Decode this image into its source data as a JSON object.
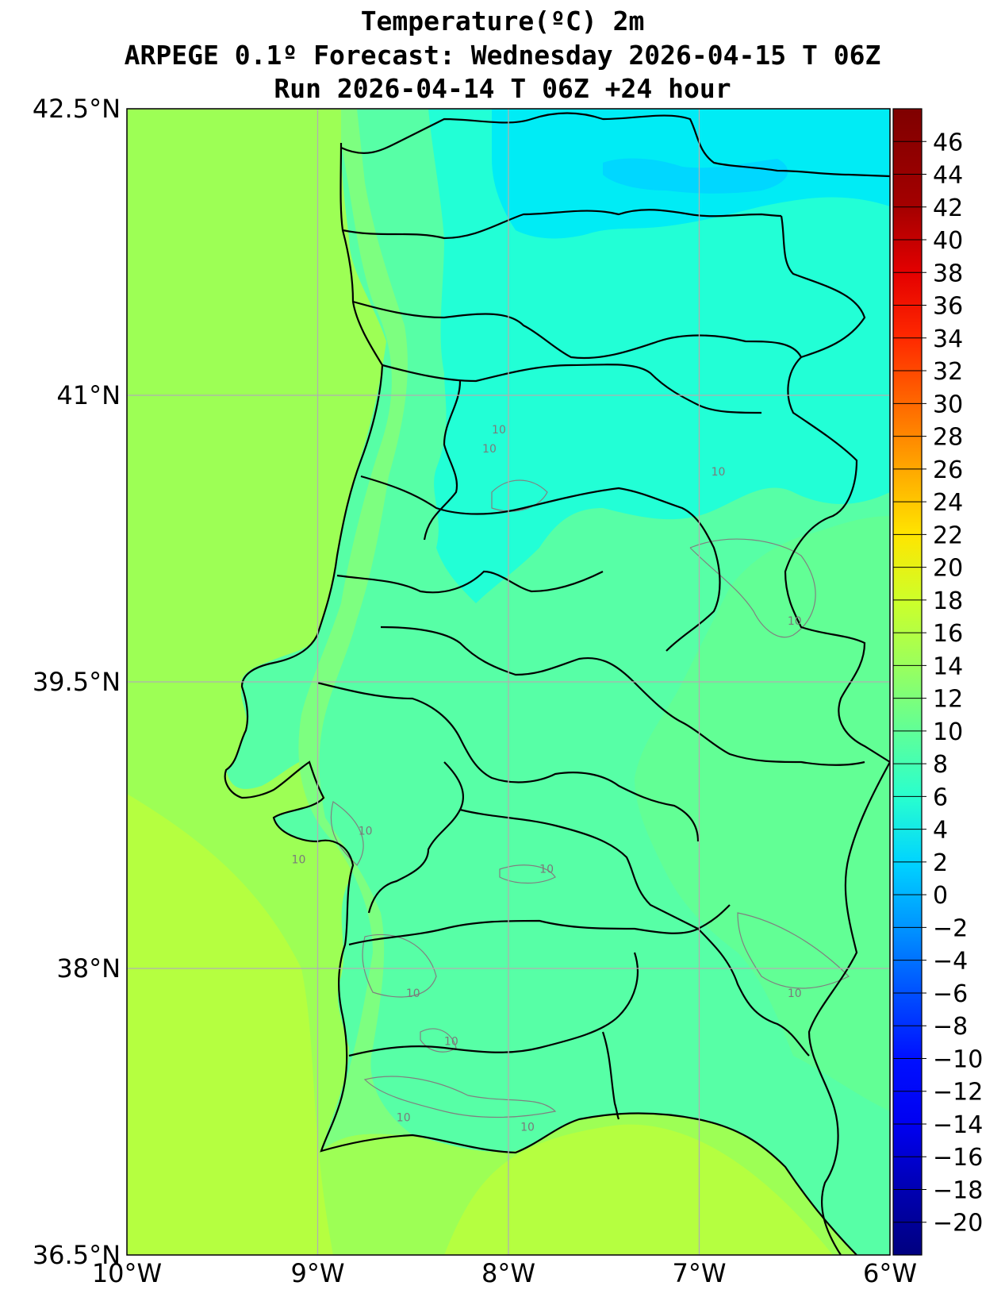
{
  "title": {
    "line1": "Temperature(ºC) 2m",
    "line2": "ARPEGE 0.1º Forecast: Wednesday 2026-04-15 T 06Z",
    "line3": "Run 2026-04-14 T 06Z +24 hour"
  },
  "map": {
    "lon_range": [
      -10,
      -6
    ],
    "lat_range": [
      36.5,
      42.5
    ],
    "lon_ticks": [
      {
        "value": -10,
        "label": "10°W"
      },
      {
        "value": -9,
        "label": "9°W"
      },
      {
        "value": -8,
        "label": "8°W"
      },
      {
        "value": -7,
        "label": "7°W"
      },
      {
        "value": -6,
        "label": "6°W"
      }
    ],
    "lat_ticks": [
      {
        "value": 42.5,
        "label": "42.5°N"
      },
      {
        "value": 41,
        "label": "41°N"
      },
      {
        "value": 39.5,
        "label": "39.5°N"
      },
      {
        "value": 38,
        "label": "38°N"
      },
      {
        "value": 36.5,
        "label": "36.5°N"
      }
    ],
    "grid": true,
    "colors": {
      "sea": "#9dff55",
      "sea_south": "#b5ff40",
      "land_main": "#57ffa6",
      "land_coast": "#7dff80",
      "land_north": "#22ffd6",
      "land_high": "#00ecf5",
      "land_peak": "#00d7ff",
      "land_east": "#62ff95",
      "border": "#000000",
      "grid": "#b0b0b0",
      "contour": "#808080"
    },
    "contour_labels": [
      {
        "lon": -8.05,
        "lat": 40.8,
        "text": "10"
      },
      {
        "lon": -8.1,
        "lat": 40.7,
        "text": "10"
      },
      {
        "lon": -6.9,
        "lat": 40.58,
        "text": "10"
      },
      {
        "lon": -6.5,
        "lat": 39.8,
        "text": "10"
      },
      {
        "lon": -8.75,
        "lat": 38.7,
        "text": "10"
      },
      {
        "lon": -9.1,
        "lat": 38.55,
        "text": "10"
      },
      {
        "lon": -7.8,
        "lat": 38.5,
        "text": "10"
      },
      {
        "lon": -8.5,
        "lat": 37.85,
        "text": "10"
      },
      {
        "lon": -8.3,
        "lat": 37.6,
        "text": "10"
      },
      {
        "lon": -8.55,
        "lat": 37.2,
        "text": "10"
      },
      {
        "lon": -7.9,
        "lat": 37.15,
        "text": "10"
      },
      {
        "lon": -6.5,
        "lat": 37.85,
        "text": "10"
      }
    ]
  },
  "colorbar": {
    "min": -22,
    "max": 48,
    "labels": [
      "46",
      "44",
      "42",
      "40",
      "38",
      "36",
      "34",
      "32",
      "30",
      "28",
      "26",
      "24",
      "22",
      "20",
      "18",
      "16",
      "14",
      "12",
      "10",
      "8",
      "6",
      "4",
      "2",
      "0",
      "−2",
      "−4",
      "−6",
      "−8",
      "−10",
      "−12",
      "−14",
      "−16",
      "−18",
      "−20"
    ],
    "label_values": [
      46,
      44,
      42,
      40,
      38,
      36,
      34,
      32,
      30,
      28,
      26,
      24,
      22,
      20,
      18,
      16,
      14,
      12,
      10,
      8,
      6,
      4,
      2,
      0,
      -2,
      -4,
      -6,
      -8,
      -10,
      -12,
      -14,
      -16,
      -18,
      -20
    ],
    "stops": [
      {
        "v": -22,
        "c": "#00007f"
      },
      {
        "v": -18,
        "c": "#0000b2"
      },
      {
        "v": -14,
        "c": "#0000f1"
      },
      {
        "v": -10,
        "c": "#0010ff"
      },
      {
        "v": -6,
        "c": "#0050ff"
      },
      {
        "v": -2,
        "c": "#0094ff"
      },
      {
        "v": 2,
        "c": "#00d4ff"
      },
      {
        "v": 6,
        "c": "#29ffce"
      },
      {
        "v": 10,
        "c": "#60ff97"
      },
      {
        "v": 14,
        "c": "#9aff5d"
      },
      {
        "v": 18,
        "c": "#ceff29"
      },
      {
        "v": 22,
        "c": "#ffe500"
      },
      {
        "v": 26,
        "c": "#ffa700"
      },
      {
        "v": 30,
        "c": "#ff6800"
      },
      {
        "v": 34,
        "c": "#ff2900"
      },
      {
        "v": 38,
        "c": "#e40000"
      },
      {
        "v": 42,
        "c": "#a40000"
      },
      {
        "v": 48,
        "c": "#7f0000"
      }
    ]
  }
}
